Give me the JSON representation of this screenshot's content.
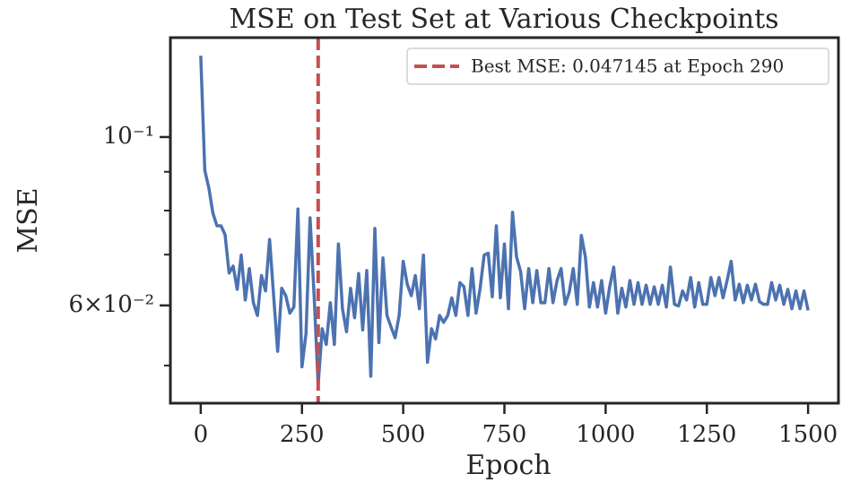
{
  "chart_data": {
    "type": "line",
    "title": "MSE on Test Set at Various Checkpoints",
    "xlabel": "Epoch",
    "ylabel": "MSE",
    "x": [
      0,
      10,
      20,
      30,
      40,
      50,
      60,
      70,
      80,
      90,
      100,
      110,
      120,
      130,
      140,
      150,
      160,
      170,
      180,
      190,
      200,
      210,
      220,
      230,
      240,
      250,
      260,
      270,
      280,
      290,
      300,
      310,
      320,
      330,
      340,
      350,
      360,
      370,
      380,
      390,
      400,
      410,
      420,
      430,
      440,
      450,
      460,
      470,
      480,
      490,
      500,
      510,
      520,
      530,
      540,
      550,
      560,
      570,
      580,
      590,
      600,
      610,
      620,
      630,
      640,
      650,
      660,
      670,
      680,
      690,
      700,
      710,
      720,
      730,
      740,
      750,
      760,
      770,
      780,
      790,
      800,
      810,
      820,
      830,
      840,
      850,
      860,
      870,
      880,
      890,
      900,
      910,
      920,
      930,
      940,
      950,
      960,
      970,
      980,
      990,
      1000,
      1010,
      1020,
      1030,
      1040,
      1050,
      1060,
      1070,
      1080,
      1090,
      1100,
      1110,
      1120,
      1130,
      1140,
      1150,
      1160,
      1170,
      1180,
      1190,
      1200,
      1210,
      1220,
      1230,
      1240,
      1250,
      1260,
      1270,
      1280,
      1290,
      1300,
      1310,
      1320,
      1330,
      1340,
      1350,
      1360,
      1370,
      1380,
      1390,
      1400,
      1410,
      1420,
      1430,
      1440,
      1450,
      1460,
      1470,
      1480,
      1490,
      1500
    ],
    "series": [
      {
        "color": "#4c72b0",
        "values": [
          0.128,
          0.0904,
          0.0857,
          0.0794,
          0.0764,
          0.0764,
          0.0744,
          0.0662,
          0.0676,
          0.063,
          0.0699,
          0.061,
          0.0671,
          0.0605,
          0.0582,
          0.0657,
          0.0627,
          0.0733,
          0.0618,
          0.0522,
          0.0632,
          0.0618,
          0.0586,
          0.0597,
          0.0804,
          0.0498,
          0.0551,
          0.0783,
          0.0618,
          0.047145,
          0.0559,
          0.0533,
          0.0605,
          0.0533,
          0.0723,
          0.0594,
          0.0554,
          0.0632,
          0.0578,
          0.0661,
          0.0557,
          0.0667,
          0.0484,
          0.0758,
          0.0536,
          0.0693,
          0.0582,
          0.0562,
          0.0544,
          0.0582,
          0.0686,
          0.064,
          0.0618,
          0.0657,
          0.0594,
          0.0699,
          0.0505,
          0.0559,
          0.0542,
          0.0582,
          0.057,
          0.0582,
          0.0614,
          0.0582,
          0.0643,
          0.0635,
          0.0582,
          0.0671,
          0.0586,
          0.0632,
          0.0699,
          0.0703,
          0.0616,
          0.0764,
          0.0614,
          0.0723,
          0.0594,
          0.0796,
          0.0695,
          0.0665,
          0.0594,
          0.0671,
          0.0605,
          0.0667,
          0.0605,
          0.0605,
          0.0671,
          0.0605,
          0.0647,
          0.0671,
          0.0602,
          0.0624,
          0.0671,
          0.0602,
          0.0742,
          0.0695,
          0.0597,
          0.0643,
          0.0597,
          0.0647,
          0.0586,
          0.0635,
          0.0674,
          0.0586,
          0.0632,
          0.0597,
          0.0647,
          0.0602,
          0.0643,
          0.0602,
          0.0638,
          0.0602,
          0.0635,
          0.0602,
          0.0638,
          0.0597,
          0.0674,
          0.0602,
          0.0599,
          0.0627,
          0.061,
          0.0653,
          0.0597,
          0.0643,
          0.0602,
          0.0602,
          0.0653,
          0.0618,
          0.0653,
          0.0614,
          0.0647,
          0.0686,
          0.061,
          0.064,
          0.0605,
          0.0638,
          0.061,
          0.064,
          0.0607,
          0.0602,
          0.0602,
          0.0643,
          0.061,
          0.0638,
          0.0602,
          0.063,
          0.0594,
          0.0627,
          0.0594,
          0.0627,
          0.0591
        ]
      }
    ],
    "reference_line": {
      "x": 290,
      "label": "Best MSE: 0.047145 at Epoch 290",
      "color": "#c44e52"
    },
    "legend": "upper right",
    "xlim": [
      -75,
      1575
    ],
    "xticks": [
      0,
      250,
      500,
      750,
      1000,
      1250,
      1500
    ],
    "ylim": [
      0.0446,
      0.1352
    ],
    "log_y": true,
    "yticks": [
      {
        "value": 0.1,
        "label": "10⁻¹"
      },
      {
        "value": 0.06,
        "label": "6×10⁻²"
      }
    ],
    "yminorticks": [
      0.05,
      0.07,
      0.08,
      0.09
    ]
  }
}
